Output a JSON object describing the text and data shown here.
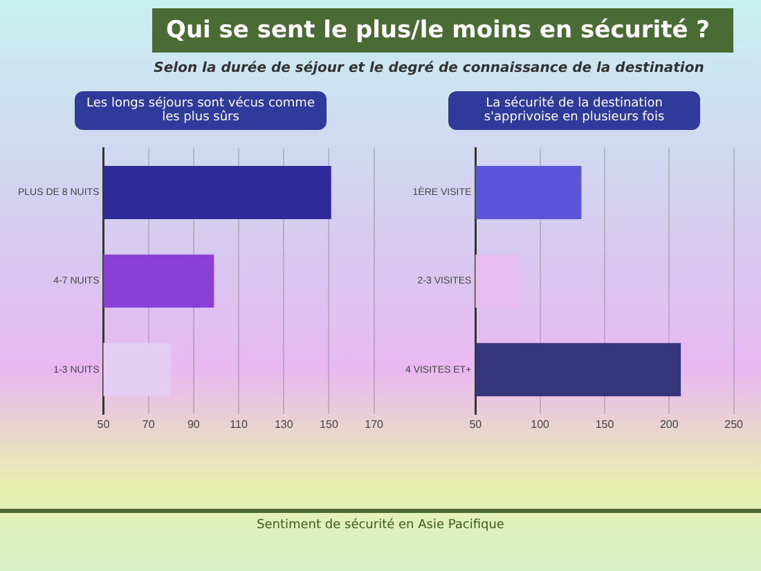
{
  "chart_data": [
    {
      "type": "bar",
      "orientation": "horizontal",
      "title": "Qui se sent le plus/le moins en sécurité ?",
      "subtitle": "Selon la durée de séjour et le degré de connaissance de la destination",
      "categories": [
        "PLUS DE 8 NUITS",
        "4-7 NUITS",
        "1-3 NUITS"
      ],
      "values": [
        151,
        99,
        80
      ],
      "colors": [
        "#2e2a9a",
        "#8a3fd6",
        "#e4cdf2"
      ],
      "xlim": [
        50,
        170
      ],
      "xticks": [
        50,
        70,
        90,
        110,
        130,
        150,
        170
      ],
      "grid": "x",
      "annotations": [
        "Les longs séjours sont vécus comme les plus sûrs",
        "Sentiment de sécurité en Asie Pacifique"
      ]
    },
    {
      "type": "bar",
      "orientation": "horizontal",
      "categories": [
        "1ÈRE VISITE",
        "2-3 VISITES",
        "4 VISITES ET+"
      ],
      "values": [
        132,
        83,
        209
      ],
      "colors": [
        "#5a55d8",
        "#e8bdf2",
        "#34357a"
      ],
      "xlim": [
        50,
        250
      ],
      "xticks": [
        50,
        100,
        150,
        200,
        250
      ],
      "grid": "x",
      "annotations": [
        "La sécurité de la destination s'apprivoise en plusieurs fois"
      ]
    }
  ]
}
